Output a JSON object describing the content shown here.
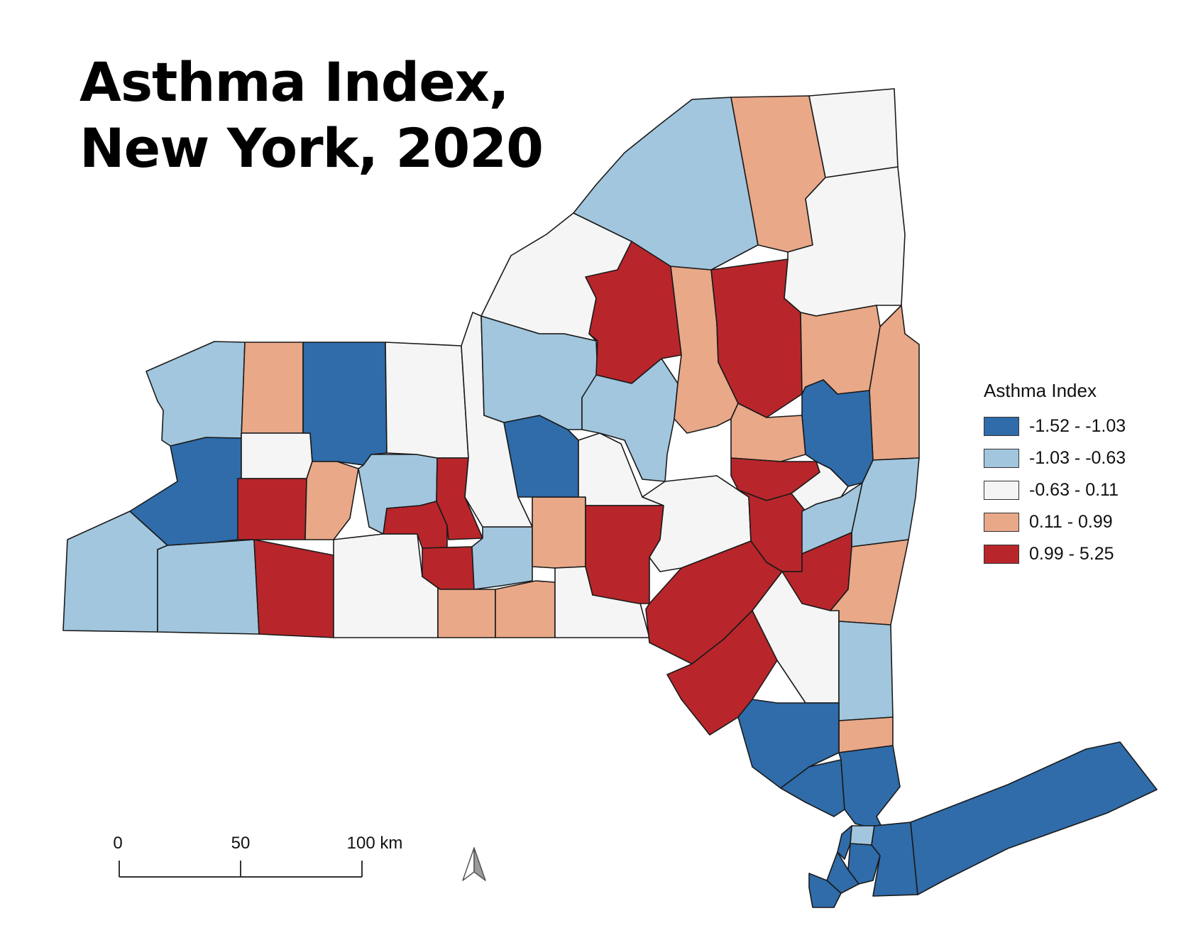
{
  "title": {
    "line1": "Asthma Index,",
    "line2": "New York, 2020"
  },
  "legend": {
    "title": "Asthma Index",
    "classes": [
      {
        "label": "-1.52 - -1.03",
        "color": "#2f6ca9"
      },
      {
        "label": "-1.03 - -0.63",
        "color": "#a2c6de"
      },
      {
        "label": "-0.63 - 0.11",
        "color": "#f5f5f5"
      },
      {
        "label": "0.11 - 0.99",
        "color": "#e9a888"
      },
      {
        "label": "0.99 - 5.25",
        "color": "#b8262b"
      }
    ]
  },
  "scale_bar": {
    "labels": [
      "0",
      "50",
      "100 km"
    ]
  },
  "north_arrow": {
    "icon": "north-arrow-icon"
  }
}
